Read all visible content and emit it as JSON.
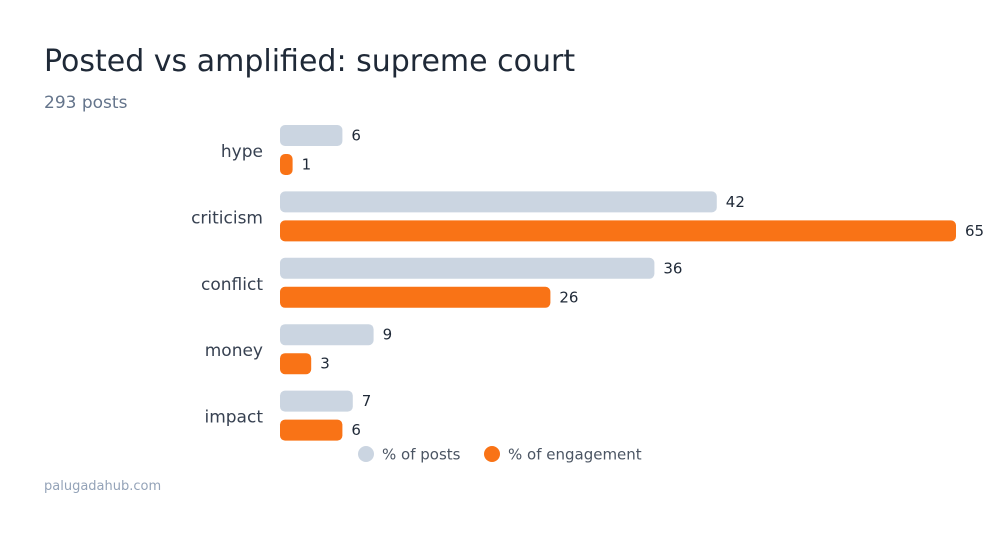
{
  "header": {
    "title": "Posted vs amplified: supreme court",
    "subtitle": "293 posts"
  },
  "footer": {
    "source": "palugadahub.com"
  },
  "colors": {
    "posts": "#cbd5e1",
    "engagement": "#f97316"
  },
  "chart_data": {
    "type": "bar",
    "orientation": "horizontal",
    "categories": [
      "hype",
      "criticism",
      "conflict",
      "money",
      "impact"
    ],
    "series": [
      {
        "name": "% of posts",
        "values": [
          6,
          42,
          36,
          9,
          7
        ]
      },
      {
        "name": "% of engagement",
        "values": [
          1,
          65,
          26,
          3,
          6
        ]
      }
    ],
    "legend_position": "bottom",
    "grid": false
  }
}
